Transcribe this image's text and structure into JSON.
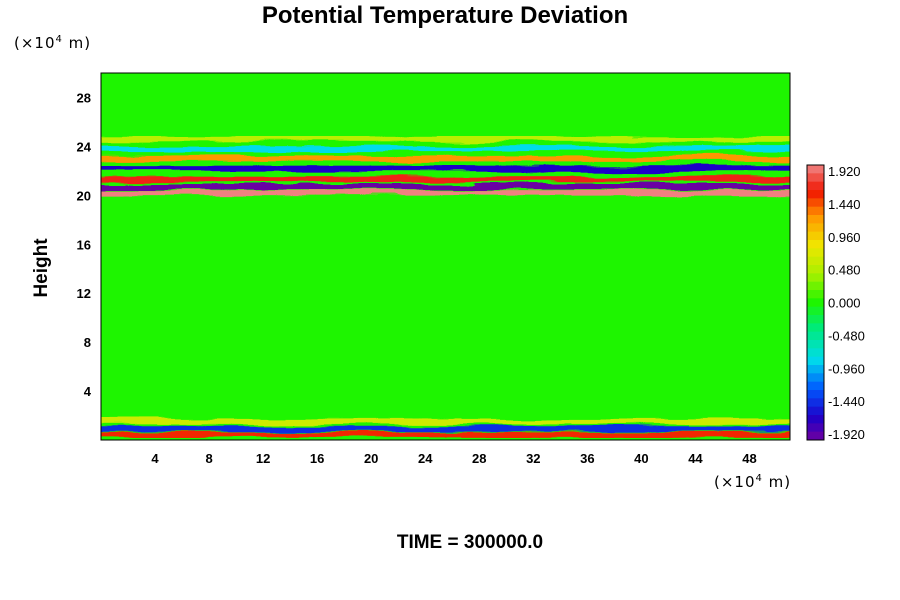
{
  "chart_data": {
    "type": "heatmap",
    "title": "Potential Temperature Deviation",
    "ylabel": "Height",
    "xunit_prefix": "(×10",
    "xunit_exp": "4",
    "xunit_suffix": " m)",
    "yunit_prefix": "(×10",
    "yunit_exp": "4",
    "yunit_suffix": " m)",
    "time_label": "TIME = 300000.0",
    "xlim": [
      0,
      51
    ],
    "ylim": [
      0,
      30
    ],
    "xticks": [
      4,
      8,
      12,
      16,
      20,
      24,
      28,
      32,
      36,
      40,
      44,
      48
    ],
    "yticks": [
      4,
      8,
      12,
      16,
      20,
      24,
      28
    ],
    "colorbar": {
      "range": [
        -1.92,
        1.92
      ],
      "tick_labels": [
        "1.920",
        "1.440",
        "0.960",
        "0.480",
        "0.000",
        "-0.480",
        "-0.960",
        "-1.440",
        "-1.920"
      ]
    },
    "bands": [
      {
        "y_center": 20.2,
        "value": 1.9
      },
      {
        "y_center": 20.7,
        "value": -1.9
      },
      {
        "y_center": 21.3,
        "value": 1.6
      },
      {
        "y_center": 22.2,
        "value": -1.6
      },
      {
        "y_center": 23.0,
        "value": 1.2
      },
      {
        "y_center": 23.8,
        "value": -0.8
      },
      {
        "y_center": 24.6,
        "value": 0.5
      },
      {
        "y_center": 0.4,
        "value": 1.5
      },
      {
        "y_center": 0.9,
        "value": -1.4
      },
      {
        "y_center": 1.5,
        "value": 0.6
      }
    ]
  }
}
